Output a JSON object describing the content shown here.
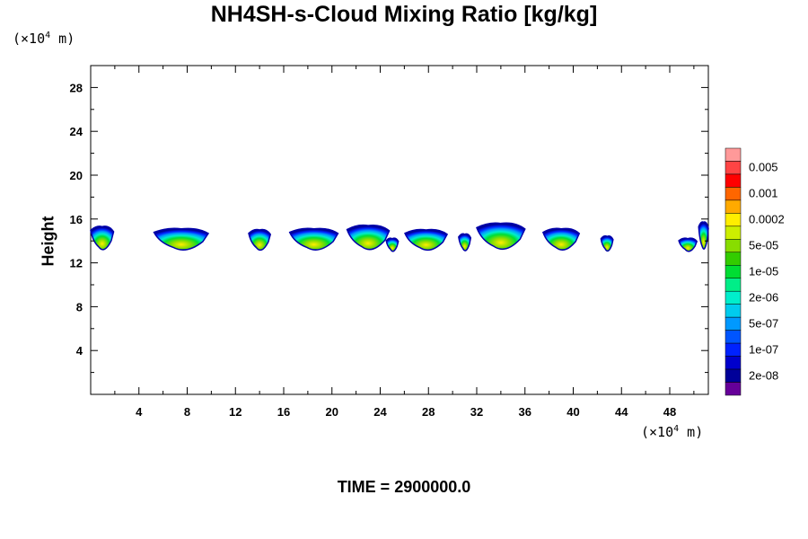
{
  "chart_data": {
    "type": "heatmap",
    "title": "NH4SH-s-Cloud Mixing Ratio [kg/kg]",
    "ylabel": "Height",
    "x_unit": "(×10⁴ m)",
    "y_unit": "(×10⁴ m)",
    "time_label": "TIME = 2900000.0",
    "xlim": [
      0,
      51.2
    ],
    "ylim": [
      0,
      30
    ],
    "x_ticks": [
      4,
      8,
      12,
      16,
      20,
      24,
      28,
      32,
      36,
      40,
      44,
      48
    ],
    "y_ticks": [
      4,
      8,
      12,
      16,
      20,
      24,
      28
    ],
    "colorbar": {
      "labels": [
        "0.005",
        "0.001",
        "0.0002",
        "5e-05",
        "1e-05",
        "2e-06",
        "5e-07",
        "1e-07",
        "2e-08"
      ],
      "colors": [
        "#ff9999",
        "#ff4444",
        "#ff0000",
        "#ff6600",
        "#ffaa00",
        "#ffee00",
        "#ccee00",
        "#88dd00",
        "#33cc00",
        "#00dd33",
        "#00ee88",
        "#00eecc",
        "#00ccee",
        "#0099ff",
        "#0055ff",
        "#0022ff",
        "#0000cc",
        "#000099",
        "#660099"
      ]
    },
    "cloud_layer": {
      "base_height": 13,
      "top_height": 15.5,
      "clouds": [
        {
          "x": 0.8,
          "w": 2.2,
          "top": 15.3
        },
        {
          "x": 7.5,
          "w": 4.5,
          "top": 15.1
        },
        {
          "x": 14.0,
          "w": 1.8,
          "top": 15.0
        },
        {
          "x": 18.5,
          "w": 4.0,
          "top": 15.1
        },
        {
          "x": 23.0,
          "w": 3.5,
          "top": 15.4
        },
        {
          "x": 25.0,
          "w": 1.0,
          "top": 14.2
        },
        {
          "x": 27.8,
          "w": 3.5,
          "top": 15.0
        },
        {
          "x": 31.0,
          "w": 1.0,
          "top": 14.6
        },
        {
          "x": 34.0,
          "w": 4.0,
          "top": 15.6
        },
        {
          "x": 39.0,
          "w": 3.0,
          "top": 15.1
        },
        {
          "x": 42.8,
          "w": 1.0,
          "top": 14.4
        },
        {
          "x": 49.5,
          "w": 1.5,
          "top": 14.2
        },
        {
          "x": 51.0,
          "w": 1.2,
          "top": 15.7
        }
      ]
    }
  }
}
